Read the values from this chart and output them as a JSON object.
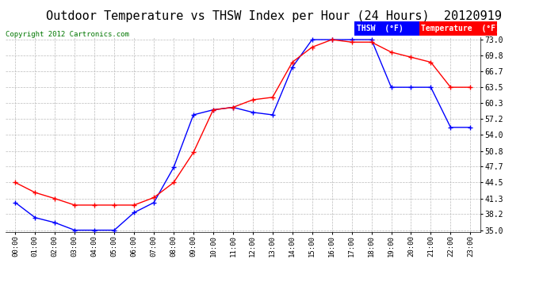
{
  "title": "Outdoor Temperature vs THSW Index per Hour (24 Hours)  20120919",
  "copyright": "Copyright 2012 Cartronics.com",
  "hours": [
    "00:00",
    "01:00",
    "02:00",
    "03:00",
    "04:00",
    "05:00",
    "06:00",
    "07:00",
    "08:00",
    "09:00",
    "10:00",
    "11:00",
    "12:00",
    "13:00",
    "14:00",
    "15:00",
    "16:00",
    "17:00",
    "18:00",
    "19:00",
    "20:00",
    "21:00",
    "22:00",
    "23:00"
  ],
  "thsw": [
    40.5,
    37.5,
    36.5,
    35.0,
    35.0,
    35.0,
    38.5,
    40.5,
    47.5,
    58.0,
    59.0,
    59.5,
    58.5,
    58.0,
    67.5,
    73.0,
    73.0,
    73.0,
    73.0,
    63.5,
    63.5,
    63.5,
    55.5,
    55.5
  ],
  "temp": [
    44.5,
    42.5,
    41.3,
    40.0,
    40.0,
    40.0,
    40.0,
    41.5,
    44.5,
    50.5,
    59.0,
    59.5,
    61.0,
    61.5,
    68.5,
    71.5,
    73.0,
    72.5,
    72.5,
    70.5,
    69.5,
    68.5,
    63.5,
    63.5
  ],
  "ylim_min": 35.0,
  "ylim_max": 73.0,
  "yticks": [
    35.0,
    38.2,
    41.3,
    44.5,
    47.7,
    50.8,
    54.0,
    57.2,
    60.3,
    63.5,
    66.7,
    69.8,
    73.0
  ],
  "thsw_color": "#0000ff",
  "temp_color": "#ff0000",
  "bg_color": "#ffffff",
  "grid_color": "#bbbbbb",
  "title_fontsize": 11,
  "copyright_fontsize": 6.5,
  "legend_thsw_label": "THSW  (°F)",
  "legend_temp_label": "Temperature  (°F)"
}
